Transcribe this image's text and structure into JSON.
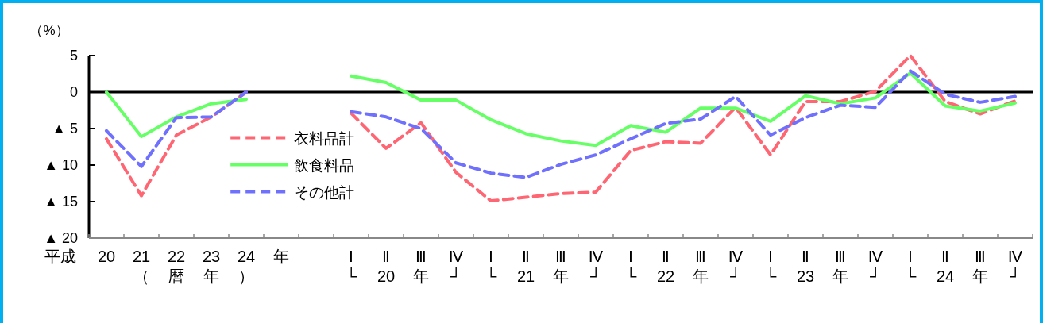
{
  "chart_data": {
    "type": "line",
    "ylabel": "（%）",
    "categories": [
      "20",
      "21\n（",
      "22\n暦",
      "23\n年",
      "24\n）",
      "年",
      null,
      "Ⅰ\n└",
      "Ⅱ\n20",
      "Ⅲ\n年",
      "Ⅳ\n┘",
      "Ⅰ\n└",
      "Ⅱ\n21",
      "Ⅲ\n年",
      "Ⅳ\n┘",
      "Ⅰ\n└",
      "Ⅱ\n22",
      "Ⅲ\n年",
      "Ⅳ\n┘",
      "Ⅰ\n└",
      "Ⅱ\n23",
      "Ⅲ\n年",
      "Ⅳ\n┘",
      "Ⅰ\n└",
      "Ⅱ\n24",
      "Ⅲ\n年",
      "Ⅳ\n┘"
    ],
    "series": [
      {
        "name": "衣料品計",
        "color": "#ff6673",
        "line_style": "dashed",
        "values": [
          -6.4,
          -14.2,
          -5.9,
          -3.4,
          0,
          null,
          null,
          -2.9,
          -7.7,
          -4.2,
          -11.0,
          -14.9,
          -14.4,
          -13.9,
          -13.7,
          -8.0,
          -6.8,
          -7.0,
          -2.1,
          -8.6,
          -1.3,
          -1.3,
          0.1,
          5.0,
          -1.3,
          -3.0,
          -1.2
        ]
      },
      {
        "name": "飲食料品",
        "color": "#66ff66",
        "line_style": "solid",
        "values": [
          0,
          -6.1,
          -3.4,
          -1.6,
          -1.0,
          null,
          null,
          2.2,
          1.3,
          -1.1,
          -1.1,
          -3.8,
          -5.7,
          -6.7,
          -7.3,
          -4.6,
          -5.5,
          -2.2,
          -2.2,
          -4.0,
          -0.5,
          -1.6,
          -0.8,
          2.6,
          -1.9,
          -2.6,
          -1.5
        ]
      },
      {
        "name": "その他計",
        "color": "#7070ff",
        "line_style": "dashed",
        "values": [
          -5.3,
          -10.2,
          -3.5,
          -3.4,
          0,
          null,
          null,
          -2.7,
          -3.4,
          -5.0,
          -9.7,
          -11.1,
          -11.7,
          -9.9,
          -8.6,
          -6.4,
          -4.3,
          -3.7,
          -0.6,
          -5.9,
          -3.5,
          -1.8,
          -2.1,
          2.9,
          -0.3,
          -1.4,
          -0.6
        ]
      }
    ],
    "ylim": [
      -20,
      5
    ],
    "yticks": [
      5,
      0,
      {
        "value": -5,
        "label": "▲ 5"
      },
      {
        "value": -10,
        "label": "▲ 10"
      },
      {
        "value": -15,
        "label": "▲ 15"
      },
      {
        "value": -20,
        "label": "▲ 20"
      }
    ],
    "ref_lines": [
      {
        "axis": "y",
        "value": 0,
        "color": "#000000"
      }
    ],
    "legend": "left",
    "annotations": [
      "平成"
    ]
  }
}
